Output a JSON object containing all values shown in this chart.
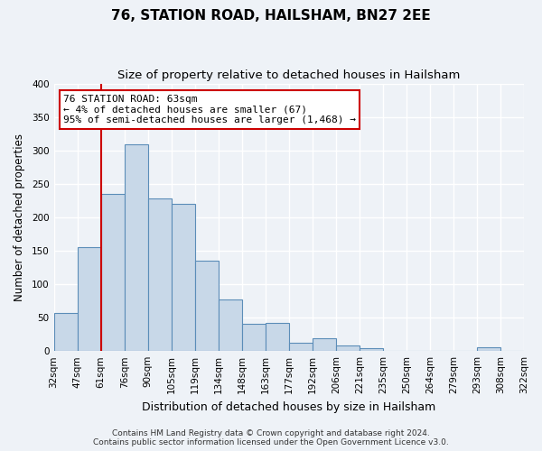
{
  "title": "76, STATION ROAD, HAILSHAM, BN27 2EE",
  "subtitle": "Size of property relative to detached houses in Hailsham",
  "xlabel": "Distribution of detached houses by size in Hailsham",
  "ylabel": "Number of detached properties",
  "bin_labels": [
    "32sqm",
    "47sqm",
    "61sqm",
    "76sqm",
    "90sqm",
    "105sqm",
    "119sqm",
    "134sqm",
    "148sqm",
    "163sqm",
    "177sqm",
    "192sqm",
    "206sqm",
    "221sqm",
    "235sqm",
    "250sqm",
    "264sqm",
    "279sqm",
    "293sqm",
    "308sqm",
    "322sqm"
  ],
  "bar_values": [
    57,
    155,
    235,
    310,
    228,
    221,
    135,
    77,
    41,
    42,
    12,
    19,
    8,
    4,
    0,
    0,
    0,
    0,
    5,
    0
  ],
  "bar_color": "#c8d8e8",
  "bar_edge_color": "#5b8db8",
  "ylim": [
    0,
    400
  ],
  "yticks": [
    0,
    50,
    100,
    150,
    200,
    250,
    300,
    350,
    400
  ],
  "marker_label_line1": "76 STATION ROAD: 63sqm",
  "marker_label_line2": "← 4% of detached houses are smaller (67)",
  "marker_label_line3": "95% of semi-detached houses are larger (1,468) →",
  "box_color": "#ffffff",
  "box_edge_color": "#cc0000",
  "vline_color": "#cc0000",
  "vline_x_index": 2,
  "footer_line1": "Contains HM Land Registry data © Crown copyright and database right 2024.",
  "footer_line2": "Contains public sector information licensed under the Open Government Licence v3.0.",
  "background_color": "#eef2f7",
  "grid_color": "#ffffff",
  "title_fontsize": 11,
  "subtitle_fontsize": 9.5,
  "xlabel_fontsize": 9,
  "ylabel_fontsize": 8.5,
  "tick_fontsize": 7.5,
  "annotation_fontsize": 8,
  "footer_fontsize": 6.5
}
